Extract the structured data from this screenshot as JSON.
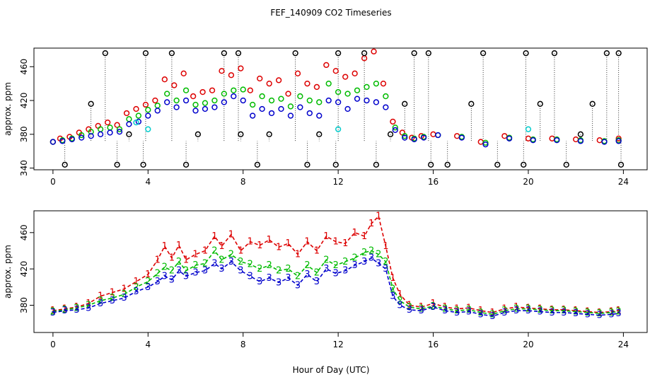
{
  "title": "FEF_140909  CO2 Timeseries",
  "xlabel": "Hour of Day (UTC)",
  "colors": {
    "series_1": "#dd0000",
    "series_2": "#00bb00",
    "series_3": "#0000cc",
    "outlier": "#000000",
    "cyan": "#00cccc",
    "axis": "#000000",
    "background": "#ffffff"
  },
  "chart_data": [
    {
      "type": "scatter",
      "ylabel": "approx. ppm",
      "xlim": [
        -0.8,
        25.0
      ],
      "ylim": [
        338,
        482
      ],
      "xticks": [
        0,
        4,
        8,
        12,
        16,
        20,
        24
      ],
      "xtick_labels": [
        "0",
        "4",
        "8",
        "12",
        "16",
        "20",
        "24"
      ],
      "yticks": [
        340,
        380,
        420,
        460
      ],
      "ytick_labels": [
        "340",
        "380",
        "420",
        "460"
      ],
      "series": [
        {
          "key": "s1",
          "marker": "circle",
          "x": [
            0.0,
            0.3,
            0.7,
            1.1,
            1.5,
            1.9,
            2.3,
            2.7,
            3.1,
            3.5,
            3.9,
            4.3,
            4.7,
            5.1,
            5.5,
            5.9,
            6.3,
            6.7,
            7.1,
            7.5,
            7.9,
            8.3,
            8.7,
            9.1,
            9.5,
            9.9,
            10.3,
            10.7,
            11.1,
            11.5,
            11.9,
            12.3,
            12.7,
            13.1,
            13.5,
            13.9,
            14.3,
            14.7,
            15.1,
            15.5,
            16.0,
            17.0,
            18.0,
            19.0,
            20.0,
            21.0,
            22.0,
            23.0,
            23.8
          ],
          "values": [
            371,
            375,
            377,
            382,
            386,
            390,
            394,
            391,
            405,
            410,
            415,
            420,
            445,
            438,
            452,
            425,
            430,
            432,
            455,
            450,
            458,
            432,
            446,
            440,
            444,
            428,
            452,
            440,
            436,
            462,
            455,
            448,
            452,
            470,
            478,
            440,
            395,
            382,
            376,
            378,
            380,
            378,
            371,
            378,
            375,
            375,
            374,
            373,
            375
          ]
        },
        {
          "key": "s2",
          "marker": "circle",
          "x": [
            0.0,
            0.4,
            0.8,
            1.2,
            1.6,
            2.0,
            2.4,
            2.8,
            3.2,
            3.6,
            4.0,
            4.4,
            4.8,
            5.2,
            5.6,
            6.0,
            6.4,
            6.8,
            7.2,
            7.6,
            8.0,
            8.4,
            8.8,
            9.2,
            9.6,
            10.0,
            10.4,
            10.8,
            11.2,
            11.6,
            12.0,
            12.4,
            12.8,
            13.2,
            13.6,
            14.0,
            14.4,
            14.8,
            15.2,
            15.6,
            16.2,
            17.2,
            18.2,
            19.2,
            20.2,
            21.2,
            22.2,
            23.2,
            23.8
          ],
          "values": [
            371,
            373,
            375,
            379,
            383,
            386,
            388,
            386,
            398,
            402,
            409,
            414,
            428,
            420,
            432,
            415,
            417,
            420,
            428,
            432,
            433,
            415,
            425,
            420,
            422,
            413,
            425,
            420,
            418,
            440,
            430,
            428,
            432,
            436,
            440,
            425,
            388,
            378,
            375,
            377,
            379,
            377,
            370,
            376,
            374,
            374,
            373,
            372,
            373
          ]
        },
        {
          "key": "s3",
          "marker": "circle",
          "x": [
            0.0,
            0.4,
            0.8,
            1.2,
            1.6,
            2.0,
            2.4,
            2.8,
            3.2,
            3.6,
            4.0,
            4.4,
            4.8,
            5.2,
            5.6,
            6.0,
            6.4,
            6.8,
            7.2,
            7.6,
            8.0,
            8.4,
            8.8,
            9.2,
            9.6,
            10.0,
            10.4,
            10.8,
            11.2,
            11.6,
            12.0,
            12.4,
            12.8,
            13.2,
            13.6,
            14.0,
            14.4,
            14.8,
            15.2,
            15.6,
            16.2,
            17.2,
            18.2,
            19.2,
            20.2,
            21.2,
            22.2,
            23.2,
            23.8
          ],
          "values": [
            371,
            372,
            374,
            376,
            378,
            380,
            382,
            383,
            392,
            395,
            402,
            408,
            418,
            412,
            420,
            408,
            410,
            412,
            418,
            425,
            420,
            402,
            410,
            405,
            410,
            402,
            412,
            405,
            402,
            420,
            418,
            410,
            422,
            420,
            418,
            412,
            385,
            376,
            374,
            376,
            379,
            376,
            368,
            375,
            373,
            373,
            372,
            371,
            372
          ]
        },
        {
          "key": "outlier",
          "marker": "circle",
          "x": [
            0.5,
            1.6,
            2.2,
            2.7,
            3.2,
            3.8,
            3.9,
            5.0,
            5.6,
            6.1,
            7.2,
            7.8,
            7.9,
            8.6,
            9.1,
            10.2,
            10.7,
            11.2,
            11.9,
            12.0,
            13.1,
            13.6,
            14.2,
            14.8,
            15.2,
            15.8,
            15.9,
            16.6,
            17.6,
            18.1,
            18.7,
            19.8,
            19.9,
            20.5,
            21.1,
            21.6,
            22.2,
            22.7,
            23.3,
            23.8,
            23.9
          ],
          "values": [
            344,
            416,
            476,
            344,
            380,
            344,
            476,
            476,
            344,
            380,
            476,
            476,
            380,
            344,
            380,
            476,
            344,
            380,
            344,
            476,
            476,
            344,
            380,
            416,
            476,
            476,
            344,
            344,
            416,
            476,
            344,
            344,
            476,
            416,
            476,
            344,
            380,
            416,
            476,
            476,
            344
          ]
        },
        {
          "key": "cyan",
          "marker": "circle",
          "x": [
            3.5,
            4.0,
            12.0,
            20.0
          ],
          "values": [
            394,
            386,
            386,
            386
          ]
        }
      ]
    },
    {
      "type": "line",
      "ylabel": "approx. ppm",
      "xlim": [
        -0.8,
        25.0
      ],
      "ylim": [
        350,
        484
      ],
      "xticks": [
        0,
        4,
        8,
        12,
        16,
        20,
        24
      ],
      "xtick_labels": [
        "0",
        "4",
        "8",
        "12",
        "16",
        "20",
        "24"
      ],
      "yticks": [
        380,
        420,
        460
      ],
      "ytick_labels": [
        "380",
        "420",
        "460"
      ],
      "series": [
        {
          "key": "s1",
          "marker": "1",
          "x": [
            0.0,
            0.5,
            1.0,
            1.5,
            2.0,
            2.5,
            3.0,
            3.5,
            4.0,
            4.4,
            4.7,
            5.0,
            5.3,
            5.6,
            6.0,
            6.4,
            6.8,
            7.1,
            7.5,
            7.9,
            8.3,
            8.7,
            9.1,
            9.5,
            9.9,
            10.3,
            10.7,
            11.1,
            11.5,
            11.9,
            12.3,
            12.7,
            13.1,
            13.4,
            13.7,
            14.0,
            14.3,
            14.6,
            15.0,
            15.5,
            16.0,
            16.5,
            17.0,
            17.5,
            18.0,
            18.5,
            19.0,
            19.5,
            20.0,
            20.5,
            21.0,
            21.5,
            22.0,
            22.5,
            23.0,
            23.5,
            23.8
          ],
          "values": [
            374,
            376,
            378,
            382,
            390,
            394,
            398,
            406,
            414,
            430,
            445,
            432,
            446,
            430,
            436,
            440,
            456,
            445,
            458,
            440,
            450,
            446,
            452,
            444,
            448,
            436,
            450,
            440,
            456,
            450,
            448,
            460,
            456,
            470,
            478,
            445,
            410,
            392,
            380,
            378,
            382,
            378,
            376,
            377,
            374,
            372,
            376,
            378,
            377,
            376,
            375,
            375,
            374,
            373,
            372,
            373,
            374
          ]
        },
        {
          "key": "s2",
          "marker": "2",
          "x": [
            0.0,
            0.5,
            1.0,
            1.5,
            2.0,
            2.5,
            3.0,
            3.5,
            4.0,
            4.4,
            4.7,
            5.0,
            5.3,
            5.6,
            6.0,
            6.4,
            6.8,
            7.1,
            7.5,
            7.9,
            8.3,
            8.7,
            9.1,
            9.5,
            9.9,
            10.3,
            10.7,
            11.1,
            11.5,
            11.9,
            12.3,
            12.7,
            13.1,
            13.4,
            13.7,
            14.0,
            14.3,
            14.6,
            15.0,
            15.5,
            16.0,
            16.5,
            17.0,
            17.5,
            18.0,
            18.5,
            19.0,
            19.5,
            20.0,
            20.5,
            21.0,
            21.5,
            22.0,
            22.5,
            23.0,
            23.5,
            23.8
          ],
          "values": [
            373,
            375,
            377,
            380,
            385,
            388,
            392,
            400,
            406,
            415,
            422,
            418,
            428,
            418,
            424,
            426,
            440,
            430,
            436,
            428,
            425,
            420,
            424,
            418,
            420,
            412,
            424,
            416,
            430,
            424,
            428,
            432,
            438,
            440,
            436,
            428,
            398,
            385,
            378,
            376,
            379,
            376,
            374,
            375,
            372,
            370,
            374,
            376,
            376,
            375,
            374,
            374,
            373,
            372,
            371,
            372,
            373
          ]
        },
        {
          "key": "s3",
          "marker": "3",
          "x": [
            0.0,
            0.5,
            1.0,
            1.5,
            2.0,
            2.5,
            3.0,
            3.5,
            4.0,
            4.4,
            4.7,
            5.0,
            5.3,
            5.6,
            6.0,
            6.4,
            6.8,
            7.1,
            7.5,
            7.9,
            8.3,
            8.7,
            9.1,
            9.5,
            9.9,
            10.3,
            10.7,
            11.1,
            11.5,
            11.9,
            12.3,
            12.7,
            13.1,
            13.4,
            13.7,
            14.0,
            14.3,
            14.6,
            15.0,
            15.5,
            16.0,
            16.5,
            17.0,
            17.5,
            18.0,
            18.5,
            19.0,
            19.5,
            20.0,
            20.5,
            21.0,
            21.5,
            22.0,
            22.5,
            23.0,
            23.5,
            23.8
          ],
          "values": [
            372,
            374,
            375,
            377,
            382,
            385,
            388,
            395,
            400,
            406,
            412,
            408,
            418,
            412,
            416,
            418,
            426,
            420,
            428,
            418,
            412,
            406,
            410,
            405,
            410,
            402,
            414,
            406,
            420,
            415,
            418,
            424,
            428,
            432,
            426,
            420,
            390,
            380,
            375,
            374,
            378,
            374,
            372,
            373,
            370,
            368,
            372,
            374,
            374,
            373,
            372,
            372,
            371,
            370,
            369,
            370,
            371
          ]
        }
      ]
    }
  ]
}
